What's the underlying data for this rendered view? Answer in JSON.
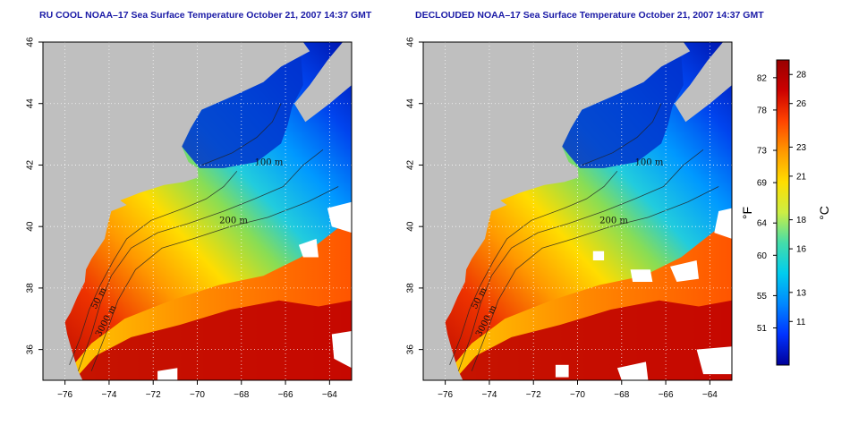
{
  "panels": [
    {
      "title": "RU COOL NOAA–17 Sea Surface Temperature October 21, 2007 14:37 GMT",
      "declouded": false
    },
    {
      "title": "DECLOUDED NOAA–17 Sea Surface Temperature October 21, 2007 14:37 GMT",
      "declouded": true
    }
  ],
  "axes": {
    "x_ticks": [
      "−76",
      "−74",
      "−72",
      "−70",
      "−68",
      "−66",
      "−64"
    ],
    "y_ticks": [
      "36",
      "38",
      "40",
      "42",
      "44",
      "46"
    ],
    "x_range": [
      -77,
      -63
    ],
    "y_range": [
      35,
      46
    ]
  },
  "contours": {
    "labels": [
      "50 m",
      "100 m",
      "200 m",
      "3000 m"
    ]
  },
  "colorbar": {
    "fahrenheit_ticks": [
      "82",
      "78",
      "73",
      "69",
      "64",
      "60",
      "55",
      "51"
    ],
    "celsius_ticks": [
      "28",
      "26",
      "23",
      "21",
      "18",
      "16",
      "13",
      "11"
    ],
    "celsius_range": [
      8,
      29
    ],
    "fahrenheit_unit": "°F",
    "celsius_unit": "°C",
    "colors": [
      "#000099",
      "#0033ff",
      "#0088ff",
      "#00ccee",
      "#44ddaa",
      "#ccee44",
      "#ffdd00",
      "#ff9900",
      "#ff4400",
      "#cc0000",
      "#990000"
    ]
  },
  "colors": {
    "land": "#bfbfbf",
    "title": "#1a1aa6",
    "cloud": "#ffffff"
  }
}
